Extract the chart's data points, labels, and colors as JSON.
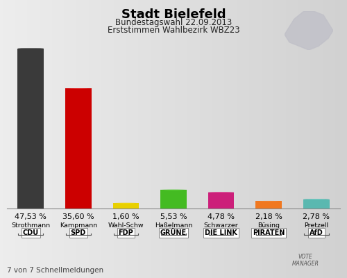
{
  "title": "Stadt Bielefeld",
  "subtitle1": "Bundestagswahl 22.09.2013",
  "subtitle2": "Erststimmen Wahlbezirk WBZ23",
  "candidates": [
    "Strothmann",
    "Kampmann",
    "Wahl-Schw",
    "Haßelmann",
    "Schwarzer",
    "Büsing",
    "Pretzell"
  ],
  "parties": [
    "CDU",
    "SPD",
    "FDP",
    "GRÜNE",
    "DIE LINK",
    "PIRATEN",
    "AfD"
  ],
  "values": [
    47.53,
    35.6,
    1.6,
    5.53,
    4.78,
    2.18,
    2.78
  ],
  "labels": [
    "47,53 %",
    "35,60 %",
    "1,60 %",
    "5,53 %",
    "4,78 %",
    "2,18 %",
    "2,78 %"
  ],
  "colors": [
    "#3a3a3a",
    "#cc0000",
    "#e8d000",
    "#44bb22",
    "#cc1f7a",
    "#f07820",
    "#5ab8b0"
  ],
  "footnote": "7 von 7 Schnellmeldungen",
  "bg_color_top": "#e8e8e8",
  "bg_color_bottom": "#d0d0d0",
  "bar_width": 0.55,
  "ylim_max": 52
}
